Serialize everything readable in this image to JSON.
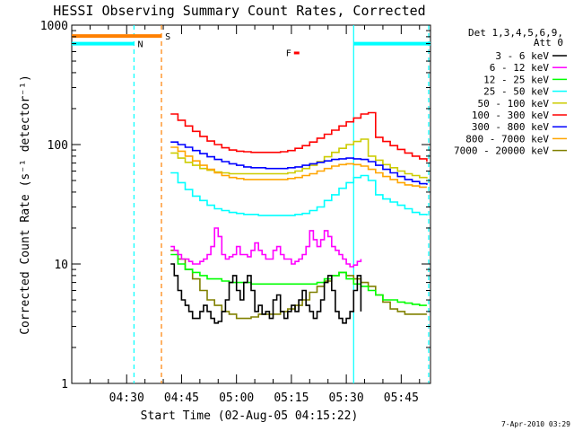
{
  "chart_data": {
    "type": "line",
    "title": "HESSI Observing Summary Count Rates, Corrected",
    "xlabel": "Start Time (02-Aug-05 04:15:22)",
    "ylabel": "Corrected Count Rate (s⁻¹ detector⁻¹)",
    "y_scale": "log",
    "ylim": [
      1,
      1000
    ],
    "xlim_minutes_after_0415": [
      0,
      98
    ],
    "x_tick_labels": [
      "04:30",
      "04:45",
      "05:00",
      "05:15",
      "05:30",
      "05:45"
    ],
    "x_tick_minutes": [
      15,
      30,
      45,
      60,
      75,
      90
    ],
    "y_tick_labels": [
      "1",
      "10",
      "100",
      "1000"
    ],
    "y_tick_values": [
      1,
      10,
      100,
      1000
    ],
    "grid": false,
    "legend": {
      "position": "right",
      "header": [
        "Det 1,3,4,5,6,9,",
        "Att 0"
      ]
    },
    "series": [
      {
        "name": "3 - 6 keV",
        "color": "#000000",
        "x": [
          27,
          28,
          29,
          30,
          31,
          32,
          33,
          34,
          35,
          36,
          37,
          38,
          39,
          40,
          41,
          42,
          43,
          44,
          45,
          46,
          47,
          48,
          49,
          50,
          51,
          52,
          53,
          54,
          55,
          56,
          57,
          58,
          59,
          60,
          61,
          62,
          63,
          64,
          65,
          66,
          67,
          68,
          69,
          70,
          71,
          72,
          73,
          74,
          75,
          76,
          77,
          78,
          79
        ],
        "y": [
          10,
          8,
          6,
          5,
          4.5,
          4,
          3.5,
          3.5,
          4,
          4.5,
          4,
          3.5,
          3.2,
          3.3,
          4,
          5,
          7,
          8,
          6,
          5,
          7,
          8,
          6,
          4,
          4.5,
          3.8,
          4,
          3.5,
          5,
          5.5,
          4,
          3.5,
          4,
          4.5,
          4,
          5,
          6,
          4.5,
          4,
          3.5,
          4,
          5,
          7,
          8,
          6,
          4,
          3.5,
          3.2,
          3.5,
          4,
          6,
          8,
          4
        ]
      },
      {
        "name": "6 - 12 keV",
        "color": "#ff00ff",
        "x": [
          27,
          28,
          29,
          30,
          31,
          32,
          33,
          34,
          35,
          36,
          37,
          38,
          39,
          40,
          41,
          42,
          43,
          44,
          45,
          46,
          47,
          48,
          49,
          50,
          51,
          52,
          53,
          54,
          55,
          56,
          57,
          58,
          59,
          60,
          61,
          62,
          63,
          64,
          65,
          66,
          67,
          68,
          69,
          70,
          71,
          72,
          73,
          74,
          75,
          76,
          77,
          78,
          79
        ],
        "y": [
          14,
          13,
          12,
          11,
          11,
          10.5,
          10,
          10,
          10.5,
          11,
          12,
          14,
          20,
          17,
          12,
          11,
          11.5,
          12,
          14,
          12,
          12,
          11.5,
          13,
          15,
          13,
          12,
          11,
          11,
          13,
          14,
          12,
          11,
          11,
          10,
          10.5,
          11,
          12,
          14,
          19,
          16,
          14,
          16,
          19,
          17,
          14,
          13,
          12,
          11,
          10,
          9.5,
          9.8,
          10.5,
          11
        ]
      },
      {
        "name": "12 - 25 keV",
        "color": "#00ff00",
        "x": [
          27,
          29,
          31,
          33,
          35,
          37,
          39,
          41,
          43,
          45,
          47,
          49,
          51,
          53,
          55,
          57,
          59,
          61,
          63,
          65,
          67,
          69,
          71,
          73,
          75,
          77,
          79,
          81,
          83,
          85,
          87,
          89,
          91,
          93,
          95,
          97
        ],
        "y": [
          12,
          10,
          9,
          8.5,
          8,
          7.5,
          7.5,
          7.2,
          7,
          7,
          7,
          6.8,
          6.8,
          6.8,
          6.8,
          6.8,
          6.8,
          6.8,
          6.8,
          6.8,
          7,
          7.5,
          8,
          8.5,
          7.5,
          6.8,
          6.5,
          6,
          5.5,
          5,
          5,
          4.8,
          4.7,
          4.6,
          4.5,
          4.5
        ]
      },
      {
        "name": "25 - 50 keV",
        "color": "#00ffff",
        "x": [
          27,
          29,
          31,
          33,
          35,
          37,
          39,
          41,
          43,
          45,
          47,
          49,
          51,
          53,
          55,
          57,
          59,
          61,
          63,
          65,
          67,
          69,
          71,
          73,
          75,
          77,
          79,
          81,
          83,
          85,
          87,
          89,
          91,
          93,
          95,
          97
        ],
        "y": [
          58,
          48,
          42,
          37,
          34,
          31,
          29,
          28,
          27,
          26.5,
          26,
          26,
          25.5,
          25.5,
          25.5,
          25.5,
          25.5,
          26,
          26.5,
          28,
          30,
          34,
          38,
          43,
          48,
          53,
          55,
          50,
          38,
          35,
          33,
          31,
          29,
          27,
          26,
          25.5
        ]
      },
      {
        "name": "50 - 100 keV",
        "color": "#cccc00",
        "x": [
          27,
          29,
          31,
          33,
          35,
          37,
          39,
          41,
          43,
          45,
          47,
          49,
          51,
          53,
          55,
          57,
          59,
          61,
          63,
          65,
          67,
          69,
          71,
          73,
          75,
          77,
          79,
          81,
          83,
          85,
          87,
          89,
          91,
          93,
          95,
          97
        ],
        "y": [
          85,
          77,
          71,
          67,
          63,
          61,
          59,
          58,
          57,
          57,
          57,
          57,
          57,
          57,
          57,
          57,
          58,
          60,
          63,
          67,
          72,
          79,
          86,
          93,
          100,
          106,
          111,
          80,
          74,
          68,
          64,
          60,
          57,
          55,
          53,
          52
        ]
      },
      {
        "name": "100 - 300 keV",
        "color": "#ff0000",
        "x": [
          27,
          29,
          31,
          33,
          35,
          37,
          39,
          41,
          43,
          45,
          47,
          49,
          51,
          53,
          55,
          57,
          59,
          61,
          63,
          65,
          67,
          69,
          71,
          73,
          75,
          77,
          79,
          81,
          83,
          85,
          87,
          89,
          91,
          93,
          95,
          97
        ],
        "y": [
          180,
          160,
          143,
          129,
          117,
          107,
          100,
          94,
          90,
          88,
          87,
          86,
          86,
          86,
          86,
          87,
          89,
          93,
          98,
          105,
          113,
          122,
          132,
          143,
          155,
          167,
          180,
          185,
          115,
          106,
          98,
          91,
          85,
          80,
          76,
          72
        ]
      },
      {
        "name": "300 - 800 keV",
        "color": "#0000ff",
        "x": [
          27,
          29,
          31,
          33,
          35,
          37,
          39,
          41,
          43,
          45,
          47,
          49,
          51,
          53,
          55,
          57,
          59,
          61,
          63,
          65,
          67,
          69,
          71,
          73,
          75,
          77,
          79,
          81,
          83,
          85,
          87,
          89,
          91,
          93,
          95,
          97
        ],
        "y": [
          105,
          100,
          95,
          89,
          84,
          79,
          75,
          72,
          69,
          67,
          65,
          64,
          64,
          63,
          63,
          63,
          64,
          65,
          67,
          69,
          71,
          73,
          75,
          76,
          77,
          76,
          75,
          72,
          67,
          62,
          58,
          54,
          51,
          49,
          47,
          46
        ]
      },
      {
        "name": "800 - 7000 keV",
        "color": "#ffa500",
        "x": [
          27,
          29,
          31,
          33,
          35,
          37,
          39,
          41,
          43,
          45,
          47,
          49,
          51,
          53,
          55,
          57,
          59,
          61,
          63,
          65,
          67,
          69,
          71,
          73,
          75,
          77,
          79,
          81,
          83,
          85,
          87,
          89,
          91,
          93,
          95,
          97
        ],
        "y": [
          95,
          88,
          80,
          73,
          67,
          62,
          58,
          55,
          53,
          52,
          51,
          51,
          51,
          51,
          51,
          51,
          52,
          53,
          55,
          57,
          60,
          63,
          66,
          68,
          69,
          68,
          66,
          62,
          58,
          54,
          51,
          48,
          46,
          45,
          44,
          44
        ]
      },
      {
        "name": "7000 - 20000 keV",
        "color": "#808000",
        "x": [
          27,
          29,
          31,
          33,
          35,
          37,
          39,
          41,
          43,
          45,
          47,
          49,
          51,
          53,
          55,
          57,
          59,
          61,
          63,
          65,
          67,
          69,
          71,
          73,
          75,
          77,
          79,
          81,
          83,
          85,
          87,
          89,
          91,
          93,
          95,
          97
        ],
        "y": [
          13,
          11,
          9,
          7.5,
          6,
          5,
          4.5,
          4,
          3.8,
          3.5,
          3.5,
          3.6,
          3.8,
          3.8,
          3.8,
          4,
          4.2,
          4.5,
          5,
          5.8,
          6.5,
          7.2,
          8,
          8.5,
          8,
          7.5,
          7,
          6.5,
          5.5,
          4.8,
          4.2,
          4,
          3.8,
          3.8,
          3.8,
          3.8
        ]
      }
    ],
    "att_segments": [
      {
        "label": "N",
        "color": "#00ffff",
        "level": 700,
        "ranges": [
          [
            0,
            17
          ],
          [
            77,
            98
          ]
        ],
        "label_minute": 18
      },
      {
        "label": "S",
        "color": "#ff8000",
        "level": 810,
        "ranges": [
          [
            0,
            24.5
          ]
        ],
        "label_minute": 25.5
      }
    ],
    "flare_marker": {
      "label": "F",
      "color": "#ff0000",
      "minute": 58.5,
      "level": 590
    },
    "vertical_lines": [
      {
        "minute": 17,
        "color": "#00ffff",
        "style": "dashed"
      },
      {
        "minute": 24.5,
        "color": "#ff8000",
        "style": "dashed"
      },
      {
        "minute": 77,
        "color": "#00ffff",
        "style": "solid"
      },
      {
        "minute": 97.5,
        "color": "#00ffff",
        "style": "dashed"
      }
    ],
    "timestamp": "7-Apr-2010 03:29"
  }
}
